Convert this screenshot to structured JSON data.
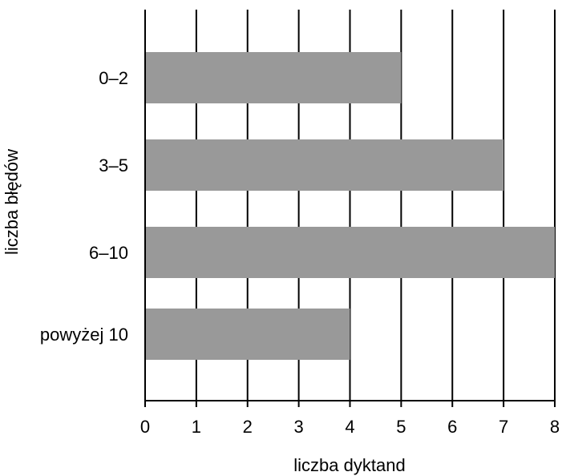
{
  "chart_data": {
    "type": "bar",
    "orientation": "horizontal",
    "categories": [
      "0–2",
      "3–5",
      "6–10",
      "powyżej 10"
    ],
    "values": [
      5,
      7,
      8,
      4
    ],
    "xlabel": "liczba dyktand",
    "ylabel": "liczba błędów",
    "xlim": [
      0,
      8
    ],
    "xticks": [
      "0",
      "1",
      "2",
      "3",
      "4",
      "5",
      "6",
      "7",
      "8"
    ],
    "grid": "vertical",
    "bar_color": "#999999",
    "grid_color": "#000000"
  }
}
